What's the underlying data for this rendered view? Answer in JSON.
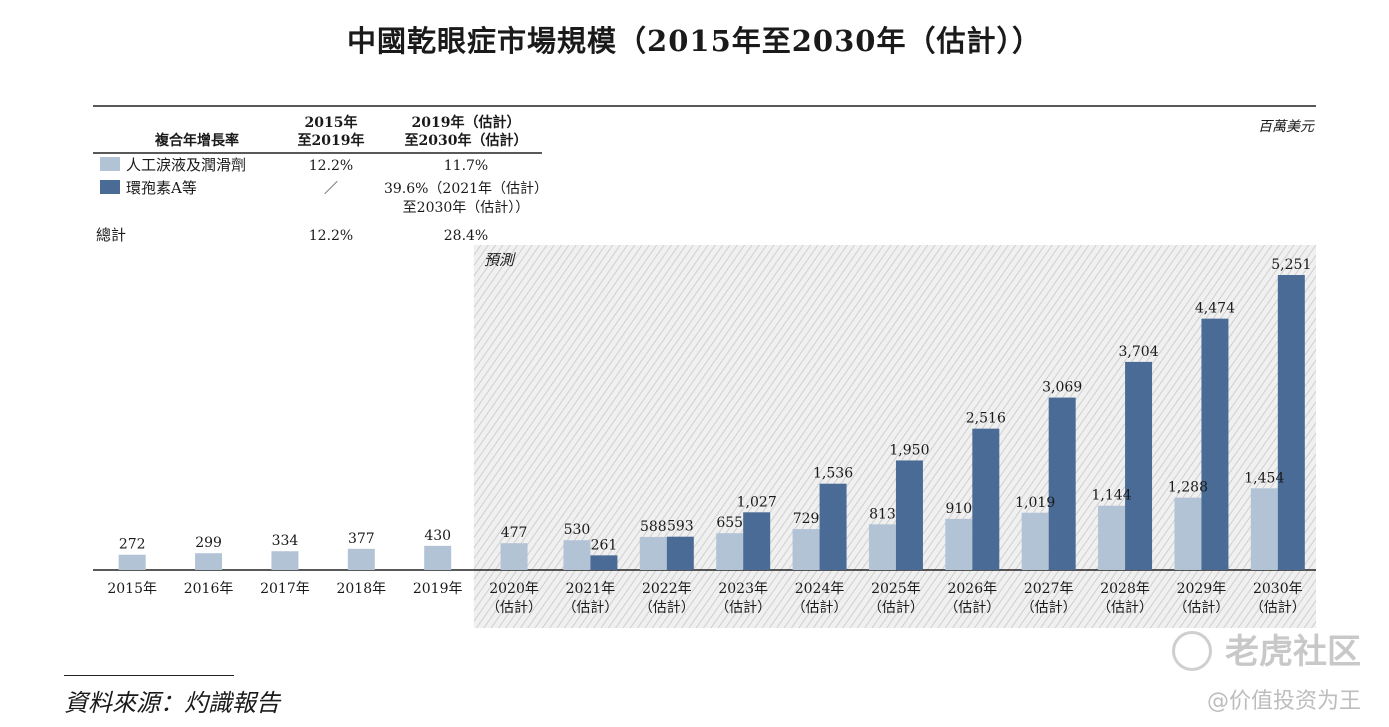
{
  "title": "中國乾眼症市場規模（2015年至2030年（估計））",
  "unit": "百萬美元",
  "forecast_label": "預測",
  "cagr_table": {
    "header_label": "複合年增長率",
    "col1": [
      "2015年",
      "至2019年"
    ],
    "col2": [
      "2019年（估計）",
      "至2030年（估計）"
    ],
    "rows": [
      {
        "label": "人工淚液及潤滑劑",
        "c1": "12.2%",
        "c2": [
          "11.7%"
        ],
        "swatch": "#b3c3d6"
      },
      {
        "label": "環孢素A等",
        "c1": "／",
        "c2": [
          "39.6%（2021年（估計）",
          "至2030年（估計））"
        ],
        "swatch": "#4a6b96"
      },
      {
        "label": "總計",
        "c1": "12.2%",
        "c2": [
          "28.4%"
        ]
      }
    ]
  },
  "source": "資料來源：灼識報告",
  "watermark": "老虎社区",
  "watermark_handle": "@价值投资为王",
  "colors": {
    "light": "#b3c3d6",
    "dark": "#4a6b96"
  },
  "chart_data": {
    "type": "bar",
    "categories": [
      "2015年",
      "2016年",
      "2017年",
      "2018年",
      "2019年",
      "2020年（估計）",
      "2021年（估計）",
      "2022年（估計）",
      "2023年（估計）",
      "2024年（估計）",
      "2025年（估計）",
      "2026年（估計）",
      "2027年（估計）",
      "2028年（估計）",
      "2029年（估計）",
      "2030年（估計）"
    ],
    "category_lines": [
      [
        "2015年"
      ],
      [
        "2016年"
      ],
      [
        "2017年"
      ],
      [
        "2018年"
      ],
      [
        "2019年"
      ],
      [
        "2020年",
        "（估計）"
      ],
      [
        "2021年",
        "（估計）"
      ],
      [
        "2022年",
        "（估計）"
      ],
      [
        "2023年",
        "（估計）"
      ],
      [
        "2024年",
        "（估計）"
      ],
      [
        "2025年",
        "（估計）"
      ],
      [
        "2026年",
        "（估計）"
      ],
      [
        "2027年",
        "（估計）"
      ],
      [
        "2028年",
        "（估計）"
      ],
      [
        "2029年",
        "（估計）"
      ],
      [
        "2030年",
        "（估計）"
      ]
    ],
    "series": [
      {
        "name": "人工淚液及潤滑劑",
        "color": "#b3c3d6",
        "values": [
          272,
          299,
          334,
          377,
          430,
          477,
          530,
          588,
          655,
          729,
          813,
          910,
          1019,
          1144,
          1288,
          1454
        ],
        "labels": [
          "272",
          "299",
          "334",
          "377",
          "430",
          "477",
          "530",
          "588",
          "655",
          "729",
          "813",
          "910",
          "1,019",
          "1,144",
          "1,288",
          "1,454"
        ]
      },
      {
        "name": "環孢素A等",
        "color": "#4a6b96",
        "values": [
          null,
          null,
          null,
          null,
          null,
          null,
          261,
          593,
          1027,
          1536,
          1950,
          2516,
          3069,
          3704,
          4474,
          5251
        ],
        "labels": [
          "",
          "",
          "",
          "",
          "",
          "",
          "261",
          "593",
          "1,027",
          "1,536",
          "1,950",
          "2,516",
          "3,069",
          "3,704",
          "4,474",
          "5,251"
        ]
      }
    ],
    "ylim": [
      0,
      5600
    ],
    "forecast_start_index": 5,
    "grid": false
  }
}
